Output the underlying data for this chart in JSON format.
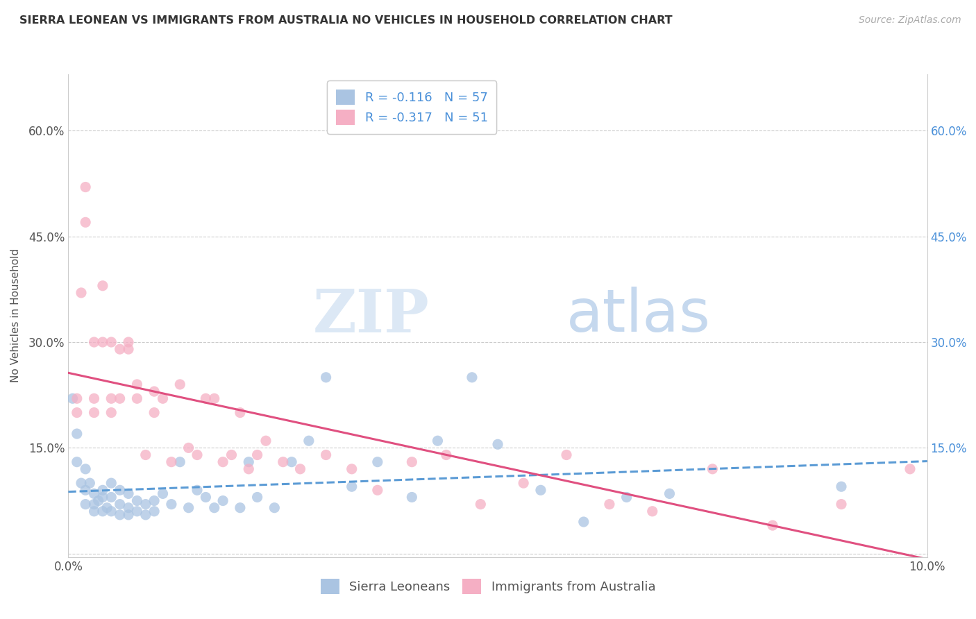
{
  "title": "SIERRA LEONEAN VS IMMIGRANTS FROM AUSTRALIA NO VEHICLES IN HOUSEHOLD CORRELATION CHART",
  "source": "Source: ZipAtlas.com",
  "ylabel": "No Vehicles in Household",
  "xlim": [
    0.0,
    0.1
  ],
  "ylim": [
    -0.005,
    0.68
  ],
  "legend_R1": "-0.116",
  "legend_N1": "57",
  "legend_R2": "-0.317",
  "legend_N2": "51",
  "legend_label1": "Sierra Leoneans",
  "legend_label2": "Immigrants from Australia",
  "color_blue": "#aac4e2",
  "color_pink": "#f5afc4",
  "color_blue_text": "#4a90d9",
  "trendline_blue": "#5b9bd5",
  "trendline_pink": "#e05080",
  "background": "#ffffff",
  "watermark_zip": "ZIP",
  "watermark_atlas": "atlas",
  "ytick_positions": [
    0.0,
    0.15,
    0.3,
    0.45,
    0.6
  ],
  "ytick_labels": [
    "",
    "15.0%",
    "30.0%",
    "45.0%",
    "60.0%"
  ],
  "sierra_x": [
    0.0005,
    0.001,
    0.001,
    0.0015,
    0.002,
    0.002,
    0.002,
    0.0025,
    0.003,
    0.003,
    0.003,
    0.0035,
    0.004,
    0.004,
    0.004,
    0.0045,
    0.005,
    0.005,
    0.005,
    0.006,
    0.006,
    0.006,
    0.007,
    0.007,
    0.007,
    0.008,
    0.008,
    0.009,
    0.009,
    0.01,
    0.01,
    0.011,
    0.012,
    0.013,
    0.014,
    0.015,
    0.016,
    0.017,
    0.018,
    0.02,
    0.021,
    0.022,
    0.024,
    0.026,
    0.028,
    0.03,
    0.033,
    0.036,
    0.04,
    0.043,
    0.047,
    0.05,
    0.055,
    0.06,
    0.065,
    0.07,
    0.09
  ],
  "sierra_y": [
    0.22,
    0.17,
    0.13,
    0.1,
    0.12,
    0.09,
    0.07,
    0.1,
    0.085,
    0.07,
    0.06,
    0.075,
    0.08,
    0.06,
    0.09,
    0.065,
    0.08,
    0.06,
    0.1,
    0.07,
    0.055,
    0.09,
    0.065,
    0.085,
    0.055,
    0.075,
    0.06,
    0.07,
    0.055,
    0.075,
    0.06,
    0.085,
    0.07,
    0.13,
    0.065,
    0.09,
    0.08,
    0.065,
    0.075,
    0.065,
    0.13,
    0.08,
    0.065,
    0.13,
    0.16,
    0.25,
    0.095,
    0.13,
    0.08,
    0.16,
    0.25,
    0.155,
    0.09,
    0.045,
    0.08,
    0.085,
    0.095
  ],
  "australia_x": [
    0.001,
    0.001,
    0.0015,
    0.002,
    0.002,
    0.003,
    0.003,
    0.003,
    0.004,
    0.004,
    0.005,
    0.005,
    0.005,
    0.006,
    0.006,
    0.007,
    0.007,
    0.008,
    0.008,
    0.009,
    0.01,
    0.01,
    0.011,
    0.012,
    0.013,
    0.014,
    0.015,
    0.016,
    0.017,
    0.018,
    0.019,
    0.02,
    0.021,
    0.022,
    0.023,
    0.025,
    0.027,
    0.03,
    0.033,
    0.036,
    0.04,
    0.044,
    0.048,
    0.053,
    0.058,
    0.063,
    0.068,
    0.075,
    0.082,
    0.09,
    0.098
  ],
  "australia_y": [
    0.22,
    0.2,
    0.37,
    0.52,
    0.47,
    0.22,
    0.2,
    0.3,
    0.3,
    0.38,
    0.22,
    0.3,
    0.2,
    0.22,
    0.29,
    0.29,
    0.3,
    0.24,
    0.22,
    0.14,
    0.23,
    0.2,
    0.22,
    0.13,
    0.24,
    0.15,
    0.14,
    0.22,
    0.22,
    0.13,
    0.14,
    0.2,
    0.12,
    0.14,
    0.16,
    0.13,
    0.12,
    0.14,
    0.12,
    0.09,
    0.13,
    0.14,
    0.07,
    0.1,
    0.14,
    0.07,
    0.06,
    0.12,
    0.04,
    0.07,
    0.12
  ]
}
